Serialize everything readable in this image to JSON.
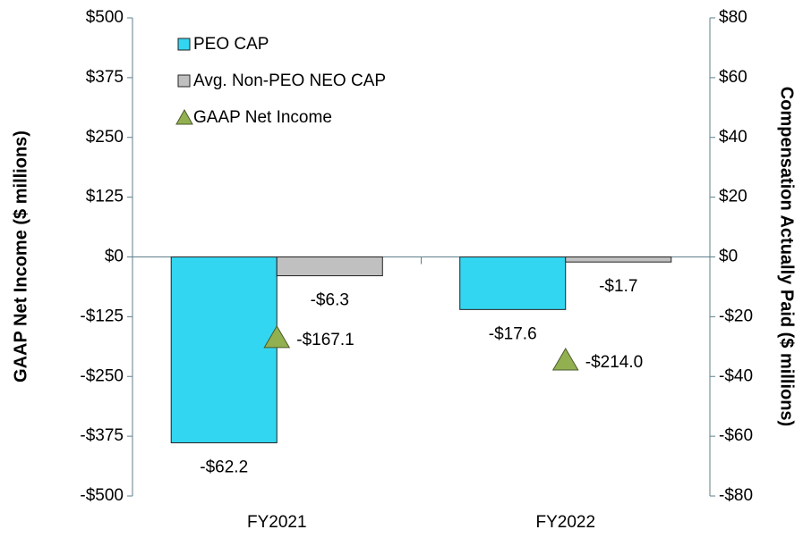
{
  "chart_data": {
    "type": "bar",
    "categories": [
      "FY2021",
      "FY2022"
    ],
    "ylabel": "GAAP Net Income ($ millions)",
    "y2label": "Compensation Actually Paid ($ millions)",
    "ylim": [
      -500,
      500
    ],
    "yticks": [
      {
        "value": 500,
        "label": "$500"
      },
      {
        "value": 375,
        "label": "$375"
      },
      {
        "value": 250,
        "label": "$250"
      },
      {
        "value": 125,
        "label": "$125"
      },
      {
        "value": 0,
        "label": "$0"
      },
      {
        "value": -125,
        "label": "-$125"
      },
      {
        "value": -250,
        "label": "-$250"
      },
      {
        "value": -375,
        "label": "-$375"
      },
      {
        "value": -500,
        "label": "-$500"
      }
    ],
    "y2lim": [
      -80,
      80
    ],
    "y2ticks": [
      {
        "value": 80,
        "label": "$80"
      },
      {
        "value": 60,
        "label": "$60"
      },
      {
        "value": 40,
        "label": "$40"
      },
      {
        "value": 20,
        "label": "$20"
      },
      {
        "value": 0,
        "label": "$0"
      },
      {
        "value": -20,
        "label": "-$20"
      },
      {
        "value": -40,
        "label": "-$40"
      },
      {
        "value": -60,
        "label": "-$60"
      },
      {
        "value": -80,
        "label": "-$80"
      }
    ],
    "legend": "upper left",
    "series": [
      {
        "name": "PEO CAP",
        "type": "bar",
        "axis": "y2",
        "color": "#33d6f0",
        "values": [
          -62.2,
          -17.6
        ],
        "value_labels": [
          "-$62.2",
          "-$17.6"
        ]
      },
      {
        "name": "Avg. Non-PEO NEO CAP",
        "type": "bar",
        "axis": "y2",
        "color": "#c0c0c0",
        "values": [
          -6.3,
          -1.7
        ],
        "value_labels": [
          "-$6.3",
          "-$1.7"
        ]
      },
      {
        "name": "GAAP Net Income",
        "type": "scatter",
        "marker": "triangle",
        "axis": "y",
        "color": "#92b050",
        "values": [
          -167.1,
          -214.0
        ],
        "value_labels": [
          "-$167.1",
          "-$214.0"
        ]
      }
    ]
  }
}
